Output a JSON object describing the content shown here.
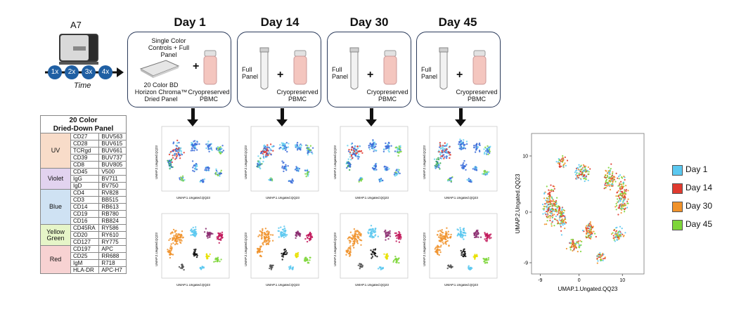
{
  "instrument": {
    "name": "A7",
    "time_label": "Time",
    "timeline": [
      "1x",
      "2x",
      "3x",
      "4x"
    ]
  },
  "days": [
    {
      "title": "Day 1",
      "left_text": [
        "Single Color",
        "Controls + Full Panel"
      ],
      "plate_text": [
        "20 Color BD",
        "Horizon Chroma™",
        "Dried Panel"
      ],
      "plus": "+",
      "vial_text": [
        "Cryopreserved",
        "PBMC"
      ]
    },
    {
      "title": "Day 14",
      "left_text": [
        "Full",
        "Panel"
      ],
      "plus": "+",
      "vial_text": [
        "Cryopreserved",
        "PBMC"
      ]
    },
    {
      "title": "Day 30",
      "left_text": [
        "Full",
        "Panel"
      ],
      "plus": "+",
      "vial_text": [
        "Cryopreserved",
        "PBMC"
      ]
    },
    {
      "title": "Day 45",
      "left_text": [
        "Full",
        "Panel"
      ],
      "plus": "+",
      "vial_text": [
        "Cryopreserved",
        "PBMC"
      ]
    }
  ],
  "panel_table": {
    "title": [
      "20 Color",
      "Dried-Down Panel"
    ],
    "groups": [
      {
        "name": "UV",
        "color": "#f8dcc9",
        "rows": [
          [
            "CD27",
            "BUV563"
          ],
          [
            "CD28",
            "BUV615"
          ],
          [
            "TCRgd",
            "BUV661"
          ],
          [
            "CD39",
            "BUV737"
          ],
          [
            "CD8",
            "BUV805"
          ]
        ]
      },
      {
        "name": "Violet",
        "color": "#e2d3ef",
        "rows": [
          [
            "CD45",
            "V500"
          ],
          [
            "IgG",
            "BV711"
          ],
          [
            "IgD",
            "BV750"
          ]
        ]
      },
      {
        "name": "Blue",
        "color": "#cfe2f3",
        "rows": [
          [
            "CD4",
            "RV828"
          ],
          [
            "CD3",
            "BB515"
          ],
          [
            "CD14",
            "RB613"
          ],
          [
            "CD19",
            "RB780"
          ],
          [
            "CD16",
            "RB824"
          ]
        ]
      },
      {
        "name": "Yellow Green",
        "color": "#e6f5c8",
        "rows": [
          [
            "CD45RA",
            "RY586"
          ],
          [
            "CD20",
            "RY610"
          ],
          [
            "CD127",
            "RY775"
          ]
        ]
      },
      {
        "name": "Red",
        "color": "#f7d2d2",
        "rows": [
          [
            "CD197",
            "APC"
          ],
          [
            "CD25",
            "RR688"
          ],
          [
            "IgM",
            "R718"
          ],
          [
            "HLA-DR",
            "APC-H7"
          ]
        ]
      }
    ]
  },
  "small_plots": {
    "xlabel": "UMAP.1.Ungated.QQ23",
    "ylabel": "UMAP.2.Ungated.QQ23"
  },
  "chart_data": {
    "type": "scatter",
    "xlabel": "UMAP.1.Ungated.QQ23",
    "ylabel": "UMAP.2.Ungated.QQ23",
    "xlim": [
      -11,
      15
    ],
    "ylim": [
      -11,
      14
    ],
    "x_ticks": [
      "-9",
      "0",
      "10"
    ],
    "y_ticks": [
      "10",
      "0",
      "-9"
    ],
    "legend_position": "right",
    "series": [
      {
        "name": "Day 1",
        "color": "#5bc8f0"
      },
      {
        "name": "Day 14",
        "color": "#e03a2f"
      },
      {
        "name": "Day 30",
        "color": "#f0922a"
      },
      {
        "name": "Day 45",
        "color": "#7ed63a"
      }
    ]
  },
  "colors": {
    "box_border": "#2a3a5a",
    "timeline_circle": "#1f5fa3",
    "vial_pink": "#f4c6bf"
  }
}
